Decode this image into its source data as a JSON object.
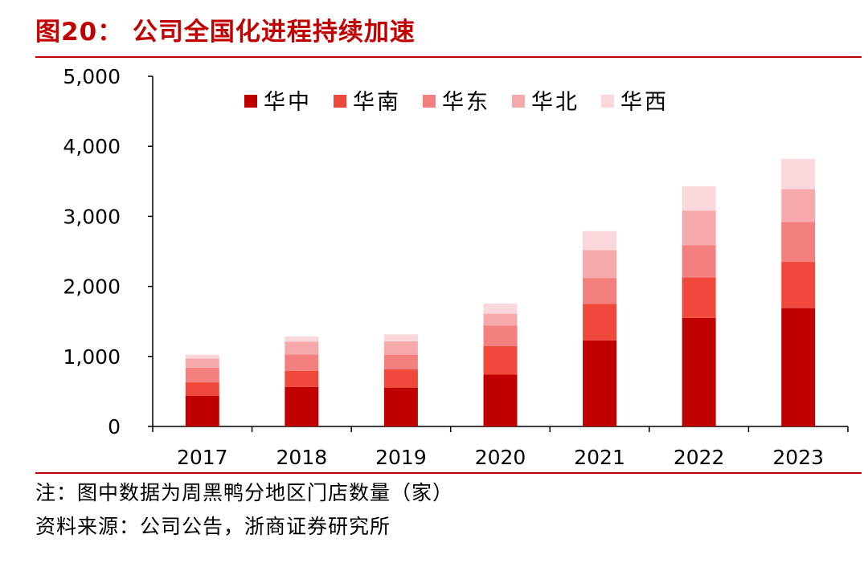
{
  "header": {
    "title": "图20： 公司全国化进程持续加速"
  },
  "chart_data": {
    "type": "bar",
    "stacked": true,
    "categories": [
      "2017",
      "2018",
      "2019",
      "2020",
      "2021",
      "2022",
      "2023"
    ],
    "series": [
      {
        "name": "华中",
        "color": "#c00000",
        "values": [
          440,
          565,
          555,
          740,
          1230,
          1550,
          1690
        ]
      },
      {
        "name": "华南",
        "color": "#f0493b",
        "values": [
          190,
          230,
          260,
          410,
          520,
          580,
          660
        ]
      },
      {
        "name": "华东",
        "color": "#f47f7f",
        "values": [
          210,
          235,
          210,
          290,
          370,
          460,
          570
        ]
      },
      {
        "name": "华北",
        "color": "#f6a9ab",
        "values": [
          130,
          180,
          190,
          170,
          400,
          490,
          470
        ]
      },
      {
        "name": "华西",
        "color": "#f9d7da",
        "values": [
          55,
          75,
          100,
          145,
          270,
          350,
          430
        ]
      }
    ],
    "ylim": [
      0,
      5000
    ],
    "yticks": [
      "0",
      "1,000",
      "2,000",
      "3,000",
      "4,000",
      "5,000"
    ],
    "legend_position": "top-center",
    "grid": false
  },
  "footer": {
    "note": "注：图中数据为周黑鸭分地区门店数量（家）",
    "source": "资料来源：公司公告，浙商证券研究所"
  }
}
